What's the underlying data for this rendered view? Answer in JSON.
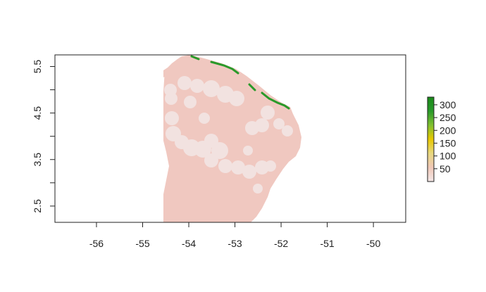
{
  "map": {
    "x_ticks": [
      "-56",
      "-55",
      "-54",
      "-53",
      "-52",
      "-51",
      "-50"
    ],
    "y_ticks": [
      "2.5",
      "3.5",
      "4.5",
      "5.5"
    ],
    "xlim": [
      -56.9,
      -49.3
    ],
    "ylim": [
      2.15,
      5.75
    ],
    "colors": {
      "background_raster": "#f0c8c0",
      "highlight_patches": "#f2e2e0",
      "coast_high_values": "#2a9a2a",
      "frame": "#222222"
    }
  },
  "legend": {
    "labels": [
      "300",
      "250",
      "200",
      "150",
      "100",
      "50"
    ],
    "range": [
      0,
      330
    ],
    "gradient_colors": [
      "#f4e8e8",
      "#f0c8b8",
      "#e8d880",
      "#e8c800",
      "#80c030",
      "#2a9a2a",
      "#1a8a1a"
    ]
  }
}
